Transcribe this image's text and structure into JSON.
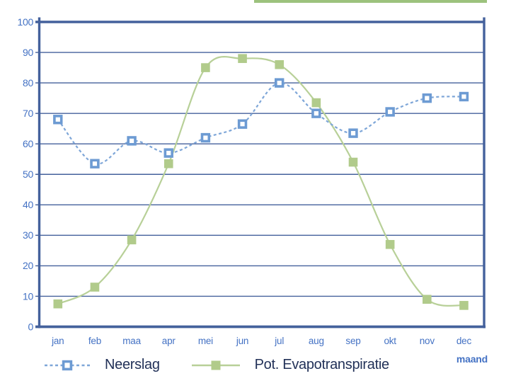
{
  "chart_data": {
    "type": "line",
    "title": "",
    "categories": [
      "jan",
      "feb",
      "maa",
      "apr",
      "mei",
      "jun",
      "jul",
      "aug",
      "sep",
      "okt",
      "nov",
      "dec"
    ],
    "series": [
      {
        "name": "Neerslag",
        "values": [
          68,
          53.5,
          61,
          57,
          62,
          66.5,
          80,
          70,
          63.5,
          70.5,
          75,
          75.5
        ],
        "line_style": "dashed",
        "marker": "open-square",
        "line_color": "#7ea6d8",
        "marker_color": "#6d9bd3"
      },
      {
        "name": "Pot. Evapotranspiratie",
        "values": [
          7.5,
          13,
          28.5,
          53.5,
          85,
          88,
          86,
          73.5,
          54,
          27,
          9,
          7
        ],
        "line_style": "solid",
        "marker": "filled-square",
        "line_color": "#b8d098",
        "marker_color": "#b1cb8b"
      }
    ],
    "xlabel": "maand",
    "ylabel": "",
    "ylim": [
      0,
      100
    ],
    "ytick_step": 10,
    "grid": true,
    "legend_position": "bottom",
    "colors": {
      "axis": "#44619c",
      "tick_label": "#4472c4",
      "legend_text": "#223158",
      "accent_bar": "#9cc27d"
    }
  }
}
